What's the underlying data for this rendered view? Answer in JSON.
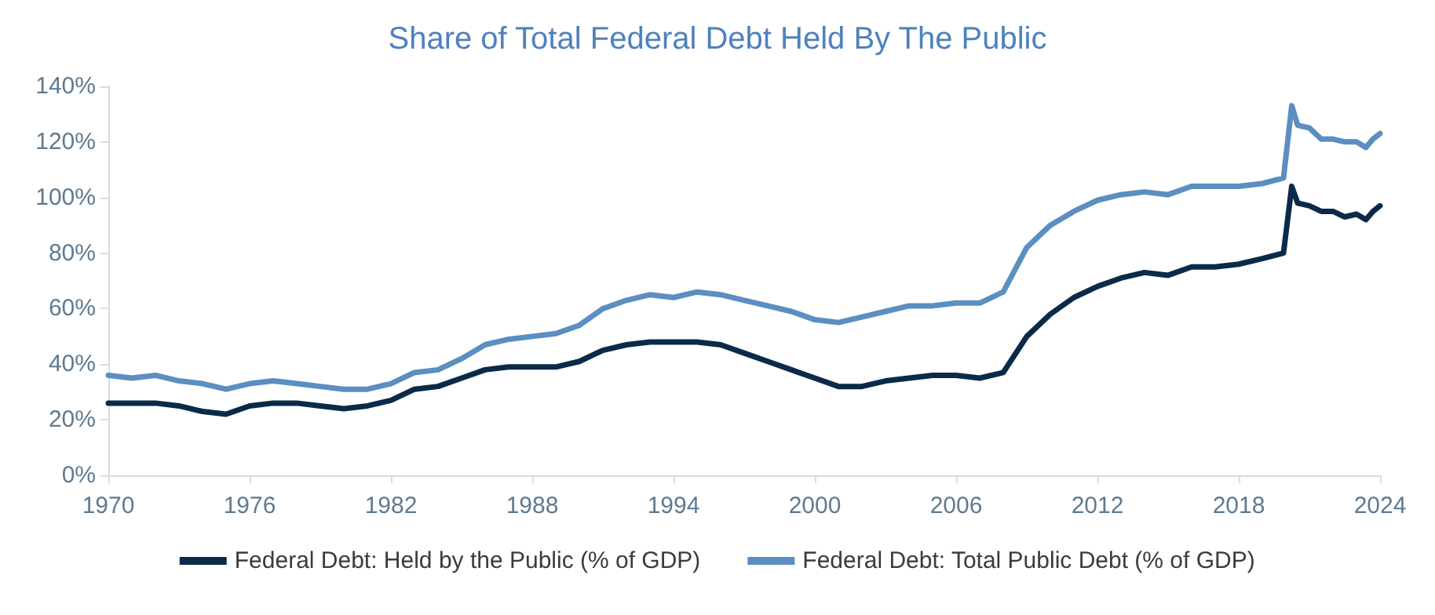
{
  "chart_data": {
    "type": "line",
    "title": "Share of Total Federal Debt Held By The Public",
    "x": [
      1970,
      1971,
      1972,
      1973,
      1974,
      1975,
      1976,
      1977,
      1978,
      1979,
      1980,
      1981,
      1982,
      1983,
      1984,
      1985,
      1986,
      1987,
      1988,
      1989,
      1990,
      1991,
      1992,
      1993,
      1994,
      1995,
      1996,
      1997,
      1998,
      1999,
      2000,
      2001,
      2002,
      2003,
      2004,
      2005,
      2006,
      2007,
      2008,
      2009,
      2010,
      2011,
      2012,
      2013,
      2014,
      2015,
      2016,
      2017,
      2018,
      2019,
      2019.9,
      2020.25,
      2020.5,
      2021,
      2021.5,
      2022,
      2022.5,
      2023,
      2023.4,
      2023.7,
      2024
    ],
    "series": [
      {
        "name": "Federal Debt: Held by the Public (% of GDP)",
        "color": "#0b2a4a",
        "values": [
          26,
          26,
          26,
          25,
          23,
          22,
          25,
          26,
          26,
          25,
          24,
          25,
          27,
          31,
          32,
          35,
          38,
          39,
          39,
          39,
          41,
          45,
          47,
          48,
          48,
          48,
          47,
          44,
          41,
          38,
          35,
          32,
          32,
          34,
          35,
          36,
          36,
          35,
          37,
          50,
          58,
          64,
          68,
          71,
          73,
          72,
          75,
          75,
          76,
          78,
          80,
          104,
          98,
          97,
          95,
          95,
          93,
          94,
          92,
          95,
          97
        ]
      },
      {
        "name": "Federal Debt: Total Public Debt (% of GDP)",
        "color": "#5b8ec1",
        "values": [
          36,
          35,
          36,
          34,
          33,
          31,
          33,
          34,
          33,
          32,
          31,
          31,
          33,
          37,
          38,
          42,
          47,
          49,
          50,
          51,
          54,
          60,
          63,
          65,
          64,
          66,
          65,
          63,
          61,
          59,
          56,
          55,
          57,
          59,
          61,
          61,
          62,
          62,
          66,
          82,
          90,
          95,
          99,
          101,
          102,
          101,
          104,
          104,
          104,
          105,
          107,
          133,
          126,
          125,
          121,
          121,
          120,
          120,
          118,
          121,
          123
        ]
      }
    ],
    "xlim": [
      1970,
      2024
    ],
    "xticks": [
      1970,
      1976,
      1982,
      1988,
      1994,
      2000,
      2006,
      2012,
      2018,
      2024
    ],
    "ylim": [
      0,
      140
    ],
    "yticks": [
      {
        "value": 0,
        "label": "0%"
      },
      {
        "value": 20,
        "label": "20%"
      },
      {
        "value": 40,
        "label": "40%"
      },
      {
        "value": 60,
        "label": "60%"
      },
      {
        "value": 80,
        "label": "80%"
      },
      {
        "value": 100,
        "label": "100%"
      },
      {
        "value": 120,
        "label": "120%"
      },
      {
        "value": 140,
        "label": "140%"
      }
    ],
    "grid": false,
    "legend": "bottom",
    "marker": "none",
    "line_style": "solid"
  }
}
